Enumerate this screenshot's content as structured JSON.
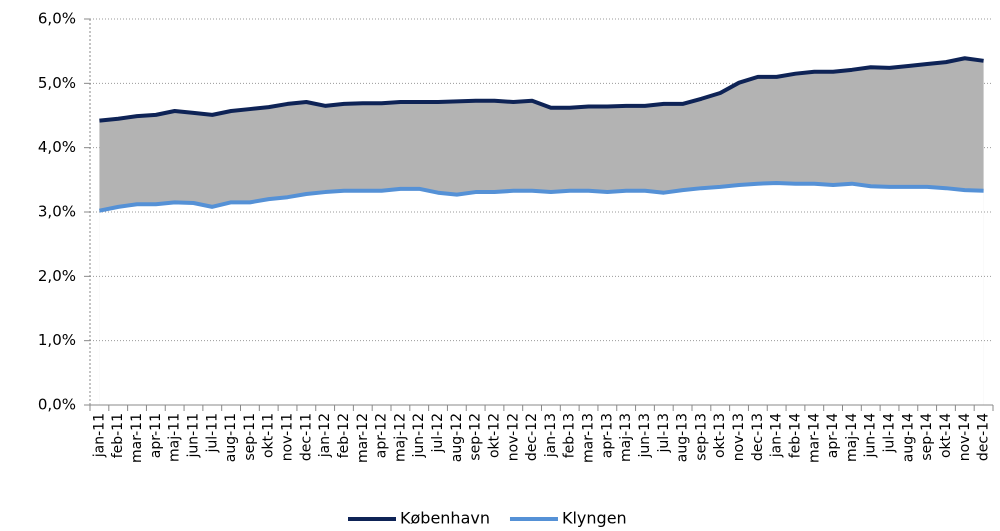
{
  "chart_data": {
    "type": "line",
    "categories": [
      "jan-11",
      "feb-11",
      "mar-11",
      "apr-11",
      "maj-11",
      "jun-11",
      "jul-11",
      "aug-11",
      "sep-11",
      "okt-11",
      "nov-11",
      "dec-11",
      "jan-12",
      "feb-12",
      "mar-12",
      "apr-12",
      "maj-12",
      "jun-12",
      "jul-12",
      "aug-12",
      "sep-12",
      "okt-12",
      "nov-12",
      "dec-12",
      "jan-13",
      "feb-13",
      "mar-13",
      "apr-13",
      "maj-13",
      "jun-13",
      "jul-13",
      "aug-13",
      "sep-13",
      "okt-13",
      "nov-13",
      "dec-13",
      "jan-14",
      "feb-14",
      "mar-14",
      "apr-14",
      "maj-14",
      "jun-14",
      "jul-14",
      "aug-14",
      "sep-14",
      "okt-14",
      "nov-14",
      "dec-14"
    ],
    "series": [
      {
        "name": "København",
        "color": "#0e2356",
        "values": [
          4.42,
          4.45,
          4.49,
          4.51,
          4.57,
          4.54,
          4.51,
          4.57,
          4.6,
          4.63,
          4.68,
          4.71,
          4.65,
          4.68,
          4.69,
          4.69,
          4.71,
          4.71,
          4.71,
          4.72,
          4.73,
          4.73,
          4.71,
          4.73,
          4.62,
          4.62,
          4.64,
          4.64,
          4.65,
          4.65,
          4.68,
          4.68,
          4.76,
          4.85,
          5.01,
          5.1,
          5.1,
          5.15,
          5.18,
          5.18,
          5.21,
          5.25,
          5.24,
          5.27,
          5.3,
          5.33,
          5.39,
          5.35
        ]
      },
      {
        "name": "Klyngen",
        "color": "#5591d6",
        "values": [
          3.02,
          3.08,
          3.12,
          3.12,
          3.15,
          3.14,
          3.08,
          3.15,
          3.15,
          3.2,
          3.23,
          3.28,
          3.31,
          3.33,
          3.33,
          3.33,
          3.36,
          3.36,
          3.3,
          3.27,
          3.31,
          3.31,
          3.33,
          3.33,
          3.31,
          3.33,
          3.33,
          3.31,
          3.33,
          3.33,
          3.3,
          3.34,
          3.37,
          3.39,
          3.42,
          3.44,
          3.45,
          3.44,
          3.44,
          3.42,
          3.44,
          3.4,
          3.39,
          3.39,
          3.39,
          3.37,
          3.34,
          3.33
        ]
      }
    ],
    "fill_between_color": "#b3b3b3",
    "ylim": [
      0,
      6
    ],
    "yticks": [
      {
        "value": 0,
        "label": "0,0%"
      },
      {
        "value": 1,
        "label": "1,0%"
      },
      {
        "value": 2,
        "label": "2,0%"
      },
      {
        "value": 3,
        "label": "3,0%"
      },
      {
        "value": 4,
        "label": "4,0%"
      },
      {
        "value": 5,
        "label": "5,0%"
      },
      {
        "value": 6,
        "label": "6,0%"
      }
    ],
    "grid": true,
    "legend": "bottom"
  }
}
